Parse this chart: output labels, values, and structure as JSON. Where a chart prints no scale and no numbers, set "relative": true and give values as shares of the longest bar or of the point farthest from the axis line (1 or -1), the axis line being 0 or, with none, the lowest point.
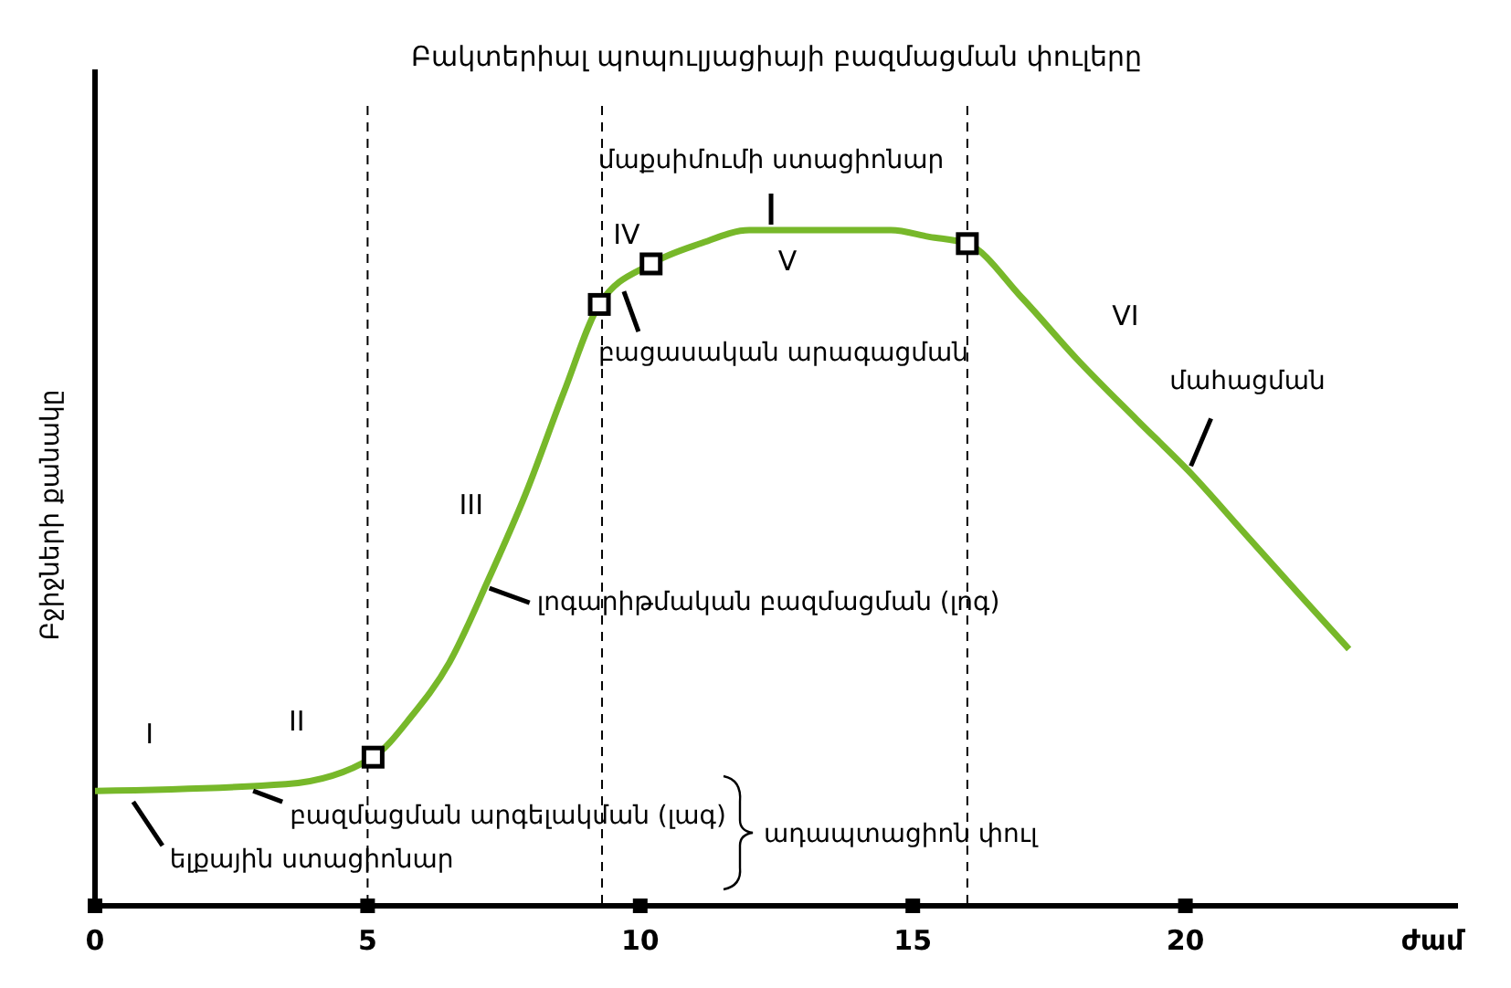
{
  "chart_data": {
    "type": "line",
    "title": "Բակտերիալ պոպուլյացիայի բազմացման փուլերը",
    "xlabel": "ժամ",
    "ylabel": "Բջիջների քանակը",
    "relative": true,
    "xlim": [
      0,
      25
    ],
    "xticks": [
      0,
      5,
      10,
      15,
      20
    ],
    "line_style": "solid",
    "series": [
      {
        "color": "#77b82a",
        "marker": "none",
        "x": [
          0,
          3.5,
          5.1,
          5.8,
          6.5,
          7.2,
          7.9,
          8.6,
          9.25,
          10.2,
          11.1,
          12.0,
          12.9,
          13.8,
          14.6,
          15.3,
          16.0,
          17.0,
          18.0,
          19.1,
          20.1,
          21.1,
          22.1,
          23.0
        ],
        "values": [
          0.17,
          0.18,
          0.22,
          0.28,
          0.36,
          0.48,
          0.61,
          0.76,
          0.89,
          0.95,
          0.98,
          1.0,
          1.0,
          1.0,
          1.0,
          0.99,
          0.98,
          0.9,
          0.81,
          0.72,
          0.64,
          0.55,
          0.46,
          0.38
        ]
      },
      {
        "type": "scatter",
        "color": "#000000",
        "marker": "square",
        "x": [
          5.1,
          9.25,
          10.2,
          16.0
        ],
        "values": [
          0.22,
          0.89,
          0.95,
          0.98
        ]
      }
    ],
    "ref_lines": [
      {
        "axis": "x",
        "value": 5,
        "line_style": "dashed"
      },
      {
        "axis": "x",
        "value": 9.3,
        "line_style": "dashed"
      },
      {
        "axis": "x",
        "value": 16,
        "line_style": "dashed"
      }
    ],
    "annotations": [
      "I",
      "II",
      "III",
      "IV",
      "V",
      "VI",
      {
        "text": "ելքային ստացիոնար",
        "x": 0.5,
        "y": 0.17
      },
      {
        "text": "բազմացման արգելակման (լագ)",
        "x": 2.7,
        "y": 0.17
      },
      {
        "text": "լոգարիթմական բազմացման (լոգ)",
        "x": 7.1,
        "y": 0.47
      },
      {
        "text": "բացասական արագացման",
        "x": 9.7,
        "y": 0.92
      },
      {
        "text": "մաքսիմումի ստացիոնար",
        "x": 12.4,
        "y": 1.0
      },
      {
        "text": "մահացման",
        "x": 20.0,
        "y": 0.64
      },
      "ադապտացիոն փուլ"
    ]
  }
}
